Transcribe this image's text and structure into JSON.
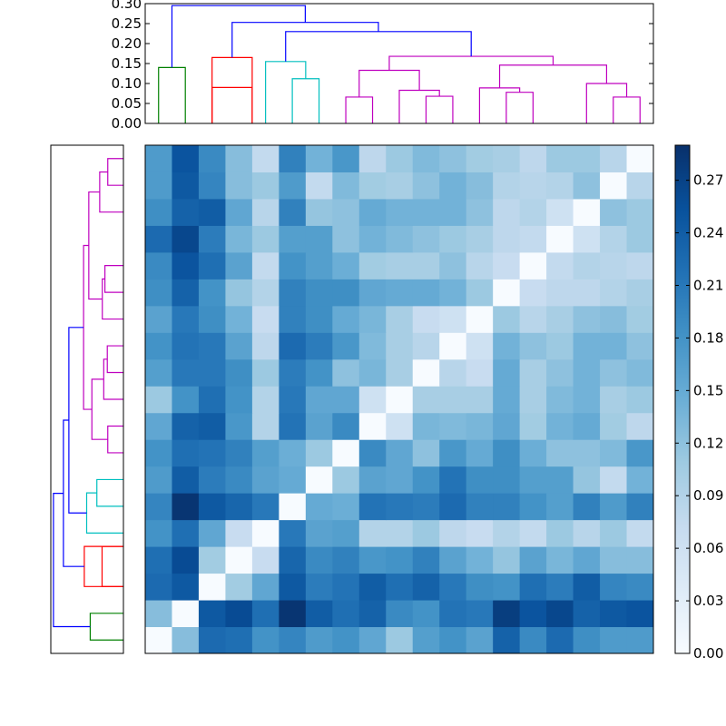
{
  "chart_data": [
    {
      "type": "dendrogram",
      "orientation": "top",
      "title": "",
      "ylabel": "",
      "ylim": [
        0,
        0.3
      ],
      "yticks": [
        0.0,
        0.05,
        0.1,
        0.15,
        0.2,
        0.25,
        0.3
      ],
      "ytick_labels": [
        "0.00",
        "0.05",
        "0.10",
        "0.15",
        "0.20",
        "0.25",
        "0.30"
      ],
      "leaves": 19,
      "links": [
        {
          "left": 1,
          "right": 2,
          "height": 0.14,
          "color": "#008000"
        },
        {
          "left": 4.5,
          "right": 3,
          "height": 0.09,
          "color": "#ff0000"
        },
        {
          "left": 3,
          "right": 4.5,
          "height": 0.165,
          "color": "#ff0000"
        },
        {
          "left": 7,
          "right": 6,
          "height": 0.112,
          "color": "#00bfbf"
        },
        {
          "left": 5,
          "right": 6.5,
          "height": 0.155,
          "color": "#00bfbf"
        },
        {
          "left": 8,
          "right": 9,
          "height": 0.066,
          "color": "#bf00bf"
        },
        {
          "left": 11,
          "right": 12,
          "height": 0.068,
          "color": "#bf00bf"
        },
        {
          "left": 10,
          "right": 11.5,
          "height": 0.083,
          "color": "#bf00bf"
        },
        {
          "left": 8.5,
          "right": 10.75,
          "height": 0.133,
          "color": "#bf00bf"
        },
        {
          "left": 14,
          "right": 15,
          "height": 0.078,
          "color": "#bf00bf"
        },
        {
          "left": 13,
          "right": 14.5,
          "height": 0.089,
          "color": "#bf00bf"
        },
        {
          "left": 18,
          "right": 19,
          "height": 0.066,
          "color": "#bf00bf"
        },
        {
          "left": 17,
          "right": 18.5,
          "height": 0.1,
          "color": "#bf00bf"
        },
        {
          "left": 13.75,
          "right": 17.75,
          "height": 0.146,
          "color": "#bf00bf"
        },
        {
          "left": 9.625,
          "right": 15.75,
          "height": 0.168,
          "color": "#bf00bf"
        },
        {
          "left": 5.75,
          "right": 12.6875,
          "height": 0.23,
          "color": "#0000ff"
        },
        {
          "left": 3.75,
          "right": 9.21875,
          "height": 0.253,
          "color": "#0000ff"
        },
        {
          "left": 1.5,
          "right": 6.484375,
          "height": 0.295,
          "color": "#0000ff"
        }
      ]
    },
    {
      "type": "heatmap",
      "title": "",
      "rows": 19,
      "cols": 19,
      "color_scale": [
        "#f7fbff",
        "#deebf7",
        "#c6dbef",
        "#9ecae1",
        "#6baed6",
        "#4292c6",
        "#2171b5",
        "#08519c",
        "#08306b"
      ],
      "values": [
        [
          0.0,
          0.125,
          0.225,
          0.22,
          0.18,
          0.195,
          0.17,
          0.18,
          0.155,
          0.11,
          0.165,
          0.18,
          0.16,
          0.235,
          0.19,
          0.225,
          0.185,
          0.17,
          0.17
        ],
        [
          0.125,
          0.0,
          0.245,
          0.26,
          0.22,
          0.285,
          0.24,
          0.22,
          0.235,
          0.19,
          0.18,
          0.215,
          0.21,
          0.275,
          0.25,
          0.265,
          0.235,
          0.245,
          0.25
        ],
        [
          0.225,
          0.245,
          0.0,
          0.105,
          0.155,
          0.245,
          0.205,
          0.215,
          0.24,
          0.22,
          0.235,
          0.21,
          0.185,
          0.18,
          0.22,
          0.205,
          0.24,
          0.195,
          0.19
        ],
        [
          0.22,
          0.26,
          0.105,
          0.0,
          0.07,
          0.23,
          0.19,
          0.2,
          0.175,
          0.18,
          0.2,
          0.16,
          0.14,
          0.115,
          0.16,
          0.135,
          0.155,
          0.125,
          0.125
        ],
        [
          0.18,
          0.22,
          0.155,
          0.07,
          0.0,
          0.21,
          0.16,
          0.165,
          0.09,
          0.09,
          0.11,
          0.08,
          0.07,
          0.09,
          0.075,
          0.11,
          0.085,
          0.11,
          0.075
        ],
        [
          0.195,
          0.285,
          0.245,
          0.23,
          0.21,
          0.0,
          0.15,
          0.145,
          0.215,
          0.21,
          0.205,
          0.225,
          0.2,
          0.2,
          0.18,
          0.165,
          0.2,
          0.17,
          0.2
        ],
        [
          0.17,
          0.24,
          0.205,
          0.19,
          0.16,
          0.15,
          0.0,
          0.11,
          0.16,
          0.155,
          0.18,
          0.215,
          0.185,
          0.185,
          0.165,
          0.165,
          0.115,
          0.075,
          0.14
        ],
        [
          0.18,
          0.22,
          0.215,
          0.2,
          0.165,
          0.145,
          0.11,
          0.0,
          0.19,
          0.155,
          0.12,
          0.175,
          0.15,
          0.185,
          0.145,
          0.12,
          0.12,
          0.13,
          0.175
        ],
        [
          0.155,
          0.235,
          0.24,
          0.175,
          0.09,
          0.215,
          0.16,
          0.19,
          0.0,
          0.06,
          0.135,
          0.13,
          0.135,
          0.155,
          0.105,
          0.14,
          0.15,
          0.105,
          0.08
        ],
        [
          0.11,
          0.18,
          0.22,
          0.18,
          0.09,
          0.21,
          0.155,
          0.155,
          0.06,
          0.0,
          0.1,
          0.1,
          0.1,
          0.15,
          0.1,
          0.13,
          0.14,
          0.1,
          0.11
        ],
        [
          0.165,
          0.21,
          0.21,
          0.185,
          0.11,
          0.205,
          0.18,
          0.12,
          0.135,
          0.1,
          0.0,
          0.085,
          0.07,
          0.15,
          0.1,
          0.12,
          0.14,
          0.12,
          0.13
        ],
        [
          0.18,
          0.215,
          0.21,
          0.16,
          0.08,
          0.225,
          0.205,
          0.175,
          0.13,
          0.1,
          0.085,
          0.0,
          0.06,
          0.14,
          0.12,
          0.11,
          0.14,
          0.14,
          0.12
        ],
        [
          0.16,
          0.21,
          0.185,
          0.14,
          0.07,
          0.2,
          0.185,
          0.15,
          0.135,
          0.1,
          0.07,
          0.06,
          0.0,
          0.11,
          0.085,
          0.1,
          0.12,
          0.125,
          0.105
        ],
        [
          0.185,
          0.235,
          0.18,
          0.115,
          0.09,
          0.2,
          0.185,
          0.185,
          0.155,
          0.15,
          0.15,
          0.14,
          0.11,
          0.0,
          0.07,
          0.08,
          0.08,
          0.09,
          0.1
        ],
        [
          0.19,
          0.25,
          0.22,
          0.16,
          0.075,
          0.18,
          0.165,
          0.145,
          0.105,
          0.1,
          0.1,
          0.12,
          0.085,
          0.07,
          0.0,
          0.075,
          0.09,
          0.085,
          0.08
        ],
        [
          0.225,
          0.265,
          0.205,
          0.135,
          0.11,
          0.165,
          0.165,
          0.12,
          0.14,
          0.13,
          0.12,
          0.11,
          0.1,
          0.08,
          0.075,
          0.0,
          0.06,
          0.09,
          0.11
        ],
        [
          0.185,
          0.235,
          0.24,
          0.155,
          0.085,
          0.2,
          0.115,
          0.12,
          0.15,
          0.14,
          0.14,
          0.14,
          0.12,
          0.08,
          0.09,
          0.06,
          0.0,
          0.12,
          0.11
        ],
        [
          0.17,
          0.245,
          0.195,
          0.125,
          0.11,
          0.17,
          0.075,
          0.13,
          0.105,
          0.1,
          0.12,
          0.14,
          0.125,
          0.09,
          0.085,
          0.09,
          0.12,
          0.0,
          0.085
        ],
        [
          0.17,
          0.25,
          0.19,
          0.125,
          0.075,
          0.2,
          0.14,
          0.175,
          0.08,
          0.11,
          0.13,
          0.12,
          0.105,
          0.1,
          0.08,
          0.11,
          0.11,
          0.085,
          0.0
        ]
      ]
    },
    {
      "type": "colorbar",
      "range": [
        0.0,
        0.29
      ],
      "ticks": [
        0.0,
        0.03,
        0.06,
        0.09,
        0.12,
        0.15,
        0.18,
        0.21,
        0.24,
        0.27
      ],
      "tick_labels": [
        "0.00",
        "0.03",
        "0.06",
        "0.09",
        "0.12",
        "0.15",
        "0.18",
        "0.21",
        "0.24",
        "0.27"
      ]
    }
  ]
}
